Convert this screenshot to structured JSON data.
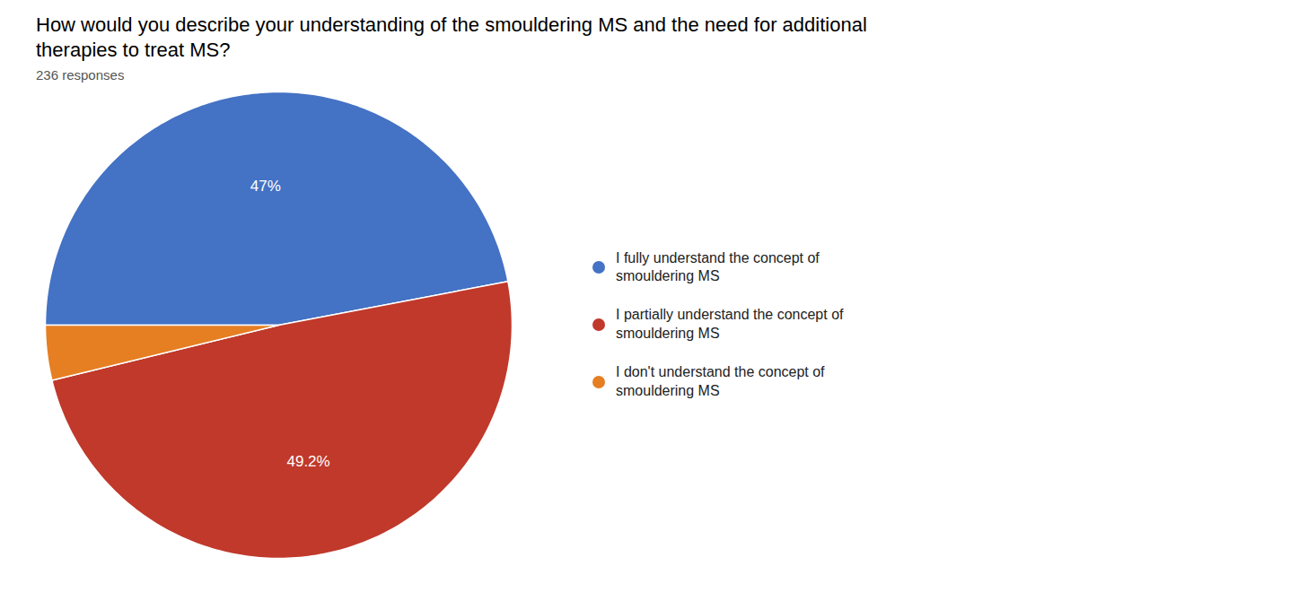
{
  "chart_data": {
    "type": "pie",
    "title": "How would you describe your understanding of the smouldering MS and the need for additional\ntherapies to treat MS?",
    "subtitle": "236 responses",
    "categories": [
      "I fully understand the concept of\nsmouldering MS",
      "I partially understand the concept of\nsmouldering MS",
      "I don't understand the concept of\nsmouldering MS"
    ],
    "values": [
      47.0,
      49.2,
      3.8
    ],
    "value_labels": [
      "47%",
      "49.2%",
      null
    ],
    "colors": [
      "#4472C4",
      "#C0392B",
      "#E67E22"
    ],
    "data_labels": true,
    "legend": "right"
  }
}
